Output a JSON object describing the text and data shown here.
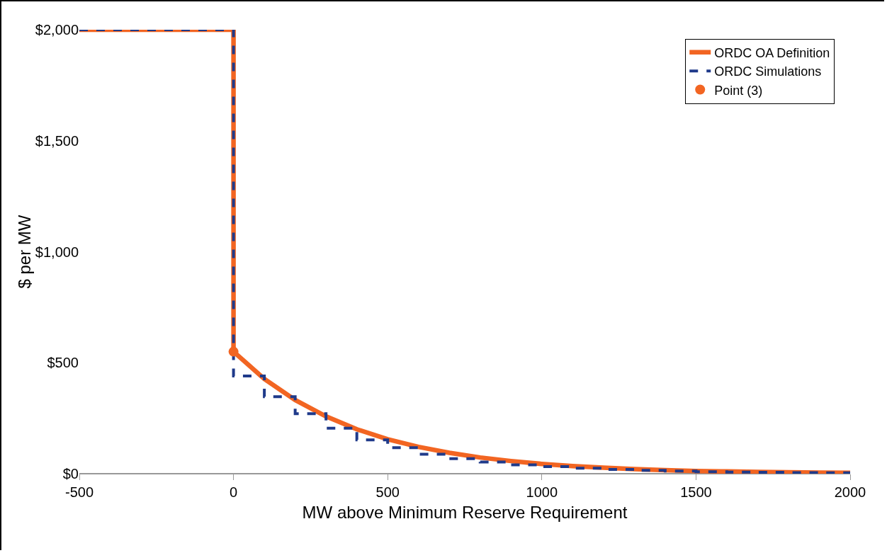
{
  "chart_data": {
    "type": "line",
    "xlabel": "MW above Minimum Reserve Requirement",
    "ylabel": "$ per MW",
    "xlim": [
      -500,
      2000
    ],
    "xticks": [
      -500,
      0,
      500,
      1000,
      1500,
      2000
    ],
    "ylim": [
      0,
      2000
    ],
    "yticks": [
      {
        "value": 0,
        "label": "$0"
      },
      {
        "value": 500,
        "label": "$500"
      },
      {
        "value": 1000,
        "label": "$1,000"
      },
      {
        "value": 1500,
        "label": "$1,500"
      },
      {
        "value": 2000,
        "label": "$2,000"
      }
    ],
    "grid": false,
    "legend": "top right",
    "series": [
      {
        "name": "ORDC OA Definition",
        "type": "line",
        "line_style": "solid",
        "color": "#f26522",
        "x": [
          -500,
          0,
          0,
          100,
          200,
          300,
          400,
          500,
          600,
          700,
          800,
          900,
          1000,
          1100,
          1200,
          1300,
          1400,
          1500,
          1600,
          1700,
          1800,
          1900,
          2000
        ],
        "values": [
          2000,
          2000,
          550,
          427,
          332,
          258,
          200,
          155,
          121,
          94,
          73,
          57,
          44,
          34,
          27,
          21,
          16,
          12,
          10,
          8,
          6,
          5,
          4
        ]
      },
      {
        "name": "ORDC Simulations",
        "type": "step",
        "line_style": "dashed",
        "color": "#1f3a8a",
        "x": [
          -500,
          0,
          0,
          100,
          200,
          300,
          400,
          500,
          600,
          700,
          800,
          900,
          1000,
          1100,
          1200,
          1300,
          1400,
          1500,
          1600,
          1700,
          1800,
          1900,
          2000
        ],
        "values": [
          2000,
          2000,
          440,
          347,
          270,
          205,
          152,
          117,
          88,
          68,
          53,
          40,
          32,
          25,
          19,
          15,
          12,
          9,
          7,
          6,
          5,
          4,
          4
        ]
      },
      {
        "name": "Point (3)",
        "type": "scatter",
        "marker": "circle",
        "color": "#f26522",
        "x": [
          0
        ],
        "values": [
          550
        ]
      }
    ]
  }
}
